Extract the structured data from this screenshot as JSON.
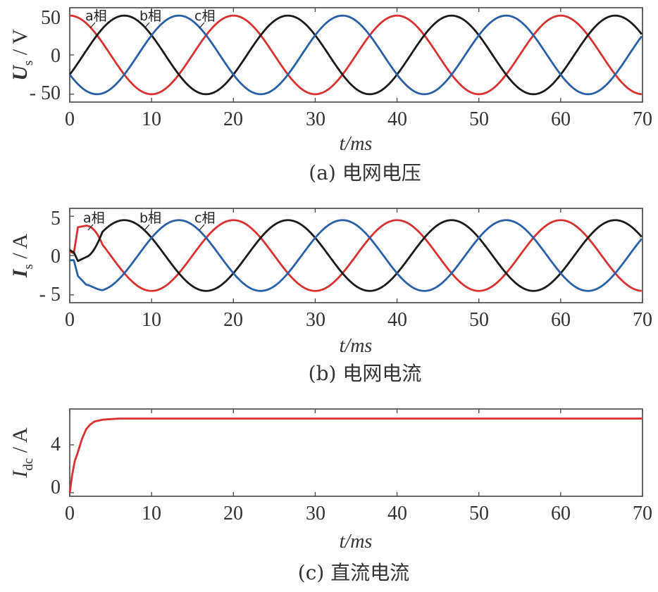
{
  "colors": {
    "a": "#d93030",
    "b": "#1a1a1a",
    "c": "#2a5fa8"
  },
  "chart_data": [
    {
      "type": "line",
      "caption": "(a) 电网电压",
      "xlabel": "t/ms",
      "ylabel_main": "U",
      "ylabel_sub": "s",
      "ylabel_unit": " / V",
      "xlim": [
        0,
        70
      ],
      "ylim": [
        -60,
        60
      ],
      "xticks": [
        "0",
        "10",
        "20",
        "30",
        "40",
        "50",
        "60",
        "70"
      ],
      "yticks": [
        "50",
        "0",
        "- 50"
      ],
      "ytick_values": [
        50,
        0,
        -50
      ],
      "annotations": [
        {
          "text": "a相"
        },
        {
          "text": "b相"
        },
        {
          "text": "c相"
        }
      ],
      "series": [
        {
          "id": "a",
          "amplitude": 50,
          "period_ms": 20,
          "phase_deg": 0
        },
        {
          "id": "b",
          "amplitude": 50,
          "period_ms": 20,
          "phase_deg": -120
        },
        {
          "id": "c",
          "amplitude": 50,
          "period_ms": 20,
          "phase_deg": 120
        }
      ]
    },
    {
      "type": "line",
      "caption": "(b) 电网电流",
      "xlabel": "t/ms",
      "ylabel_main": "I",
      "ylabel_sub": "s",
      "ylabel_unit": " / A",
      "xlim": [
        0,
        70
      ],
      "ylim": [
        -6,
        6
      ],
      "xticks": [
        "0",
        "10",
        "20",
        "30",
        "40",
        "50",
        "60",
        "70"
      ],
      "yticks": [
        "5",
        "0",
        "- 5"
      ],
      "ytick_values": [
        5,
        0,
        -5
      ],
      "annotations": [
        {
          "text": "a相"
        },
        {
          "text": "b相"
        },
        {
          "text": "c相"
        }
      ],
      "series": [
        {
          "id": "a",
          "amplitude": 4.5,
          "period_ms": 20,
          "phase_deg": 0,
          "start": [
            [
              0,
              0.5
            ],
            [
              0.5,
              0.3
            ],
            [
              1.0,
              3.6
            ],
            [
              2.0,
              3.8
            ]
          ]
        },
        {
          "id": "b",
          "amplitude": 4.5,
          "period_ms": 20,
          "phase_deg": -120,
          "start": [
            [
              0,
              0.7
            ],
            [
              0.5,
              0.4
            ],
            [
              1.0,
              -0.7
            ],
            [
              2.0,
              -0.2
            ]
          ]
        },
        {
          "id": "c",
          "amplitude": 4.5,
          "period_ms": 20,
          "phase_deg": 120,
          "start": [
            [
              0,
              -0.6
            ],
            [
              0.5,
              -0.6
            ],
            [
              1.0,
              -2.6
            ],
            [
              2.0,
              -3.7
            ]
          ]
        }
      ]
    },
    {
      "type": "line",
      "caption": "(c) 直流电流",
      "xlabel": "t/ms",
      "ylabel_main": "I",
      "ylabel_sub": "dc",
      "ylabel_unit": " / A",
      "xlim": [
        0,
        70
      ],
      "ylim": [
        -0.3,
        7
      ],
      "xticks": [
        "0",
        "10",
        "20",
        "30",
        "40",
        "50",
        "60",
        "70"
      ],
      "yticks": [
        "4",
        "0"
      ],
      "ytick_values": [
        4,
        0
      ],
      "series": [
        {
          "id": "a",
          "points": [
            [
              0,
              0
            ],
            [
              0.3,
              1.5
            ],
            [
              0.6,
              2.6
            ],
            [
              1.0,
              3.4
            ],
            [
              1.5,
              4.5
            ],
            [
              2.0,
              5.3
            ],
            [
              2.5,
              5.7
            ],
            [
              3,
              5.95
            ],
            [
              4,
              6.1
            ],
            [
              5,
              6.15
            ],
            [
              6,
              6.2
            ],
            [
              70,
              6.2
            ]
          ]
        }
      ]
    }
  ]
}
